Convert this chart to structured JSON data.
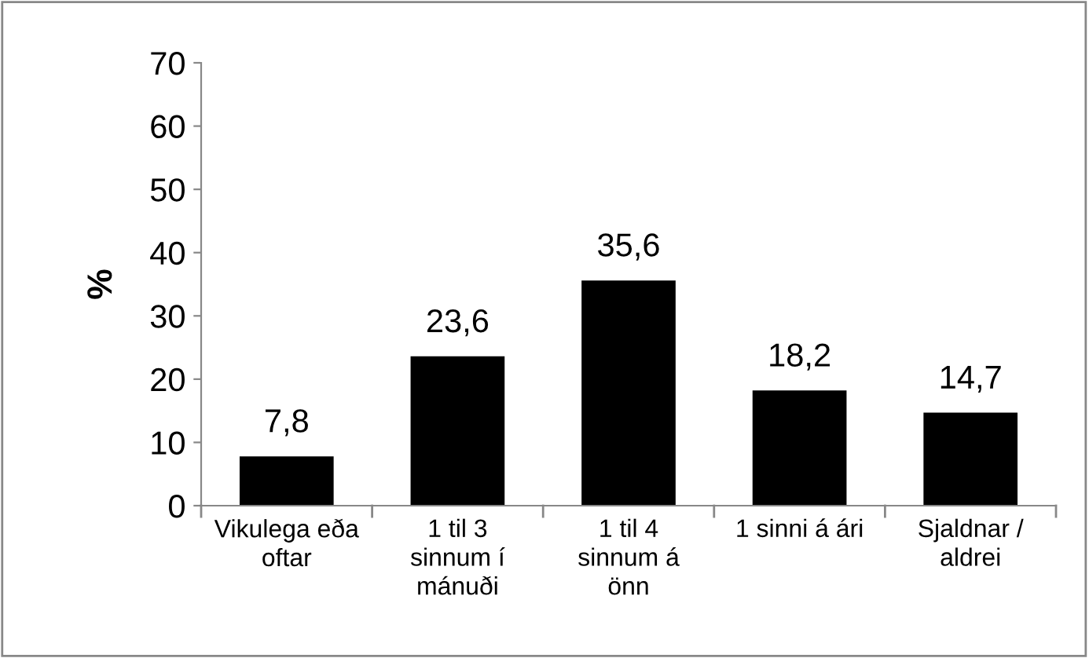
{
  "chart_data": {
    "type": "bar",
    "ylabel": "%",
    "categories": [
      "Vikulega eða\noftar",
      "1 til 3\nsinnum í\nmánuði",
      "1 til 4\nsinnum á\nönn",
      "1 sinni á ári",
      "Sjaldnar /\naldrei"
    ],
    "values": [
      7.8,
      23.6,
      35.6,
      18.2,
      14.7
    ],
    "value_labels": [
      "7,8",
      "23,6",
      "35,6",
      "18,2",
      "14,7"
    ],
    "color": "#000000",
    "ylim": [
      0,
      70
    ],
    "yticks": [
      0,
      10,
      20,
      30,
      40,
      50,
      60,
      70
    ],
    "grid": false,
    "legend": false
  }
}
